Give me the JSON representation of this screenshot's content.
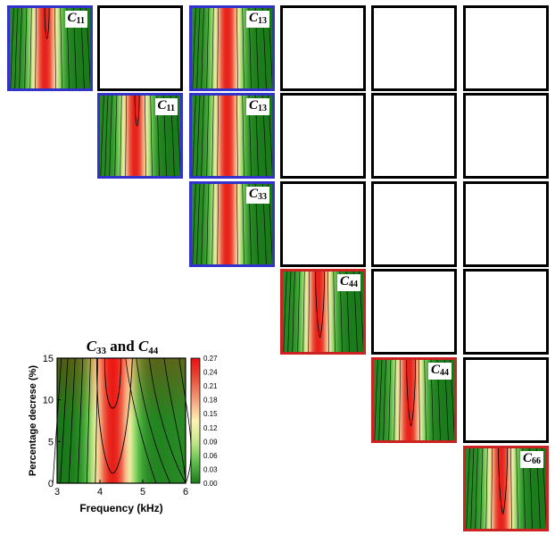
{
  "grid_panels": [
    {
      "row": 0,
      "col": 0,
      "filled": true,
      "border": "#3333cc",
      "sym": "C",
      "sub": "11",
      "valley": "narrow"
    },
    {
      "row": 0,
      "col": 1,
      "filled": false
    },
    {
      "row": 0,
      "col": 2,
      "filled": true,
      "border": "#3333cc",
      "sym": "C",
      "sub": "13",
      "valley": "none"
    },
    {
      "row": 0,
      "col": 3,
      "filled": false
    },
    {
      "row": 0,
      "col": 4,
      "filled": false
    },
    {
      "row": 0,
      "col": 5,
      "filled": false
    },
    {
      "row": 1,
      "col": 1,
      "filled": true,
      "border": "#3333cc",
      "sym": "C",
      "sub": "11",
      "valley": "narrow"
    },
    {
      "row": 1,
      "col": 2,
      "filled": true,
      "border": "#3333cc",
      "sym": "C",
      "sub": "13",
      "valley": "none"
    },
    {
      "row": 1,
      "col": 3,
      "filled": false
    },
    {
      "row": 1,
      "col": 4,
      "filled": false
    },
    {
      "row": 1,
      "col": 5,
      "filled": false
    },
    {
      "row": 2,
      "col": 2,
      "filled": true,
      "border": "#3333cc",
      "sym": "C",
      "sub": "33",
      "valley": "none"
    },
    {
      "row": 2,
      "col": 3,
      "filled": false
    },
    {
      "row": 2,
      "col": 4,
      "filled": false
    },
    {
      "row": 2,
      "col": 5,
      "filled": false
    },
    {
      "row": 3,
      "col": 3,
      "filled": true,
      "border": "#cc2222",
      "sym": "C",
      "sub": "44",
      "valley": "deep"
    },
    {
      "row": 3,
      "col": 4,
      "filled": false
    },
    {
      "row": 3,
      "col": 5,
      "filled": false
    },
    {
      "row": 4,
      "col": 4,
      "filled": true,
      "border": "#cc2222",
      "sym": "C",
      "sub": "44",
      "valley": "deep"
    },
    {
      "row": 4,
      "col": 5,
      "filled": false
    },
    {
      "row": 5,
      "col": 5,
      "filled": true,
      "border": "#cc2222",
      "sym": "C",
      "sub": "66",
      "valley": "deep"
    }
  ],
  "chart_data": {
    "type": "heatmap",
    "title_sym_a": "C",
    "title_sub_a": "33",
    "title_mid": " and ",
    "title_sym_b": "C",
    "title_sub_b": "44",
    "xlabel": "Frequency  (kHz)",
    "ylabel": "Percentage decrese (%)",
    "xlim": [
      3,
      6
    ],
    "ylim": [
      0,
      15
    ],
    "xticks": [
      "3",
      "4",
      "5",
      "6"
    ],
    "yticks": [
      "0",
      "5",
      "10",
      "15"
    ],
    "colorbar_range": [
      0,
      0.27
    ],
    "colorbar_ticks": [
      "0.27",
      "0.24",
      "0.21",
      "0.18",
      "0.15",
      "0.12",
      "0.09",
      "0.06",
      "0.03",
      "0.00"
    ],
    "peak_frequency_khz": 4.3,
    "valley_min_percentage": 1.2,
    "colormap": [
      "#1a7a1a",
      "#5cbf4a",
      "#c9e88a",
      "#fff3b3",
      "#f5a07a",
      "#e8503a",
      "#e81010"
    ]
  }
}
